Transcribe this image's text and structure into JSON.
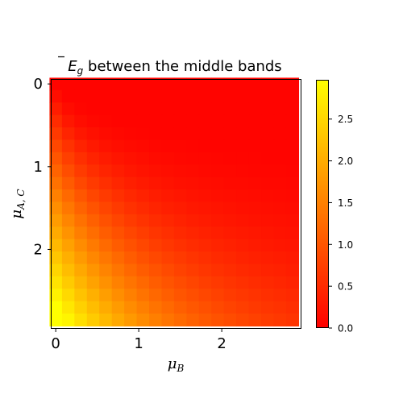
{
  "chart_data": {
    "type": "heatmap",
    "title": {
      "prefix": "E",
      "sub": "g",
      "rest": " between the middle bands"
    },
    "xlabel": {
      "base": "μ",
      "sub": "B"
    },
    "ylabel": {
      "base": "μ",
      "sub": "A, C"
    },
    "x_range": [
      -0.05,
      2.95
    ],
    "y_range": [
      -0.05,
      2.95
    ],
    "y_inverted": true,
    "grid_size": 20,
    "cell_step": 0.15,
    "x_ticks": [
      "0",
      "1",
      "2"
    ],
    "y_ticks": [
      "0",
      "1",
      "2"
    ],
    "colorbar": {
      "range": [
        0.0,
        2.97
      ],
      "colormap": "autumn",
      "color_min": "#ff0000",
      "color_max": "#ffff00",
      "ticks": [
        "0.0",
        "0.5",
        "1.0",
        "1.5",
        "2.0",
        "2.5"
      ]
    },
    "description": "Average gap between middle bands as function of mu_B (x) and mu_A,C (y); maximum ~3.0 near mu_B=0, mu_A,C=2; minimum ~0 near top row (mu_A,C=0)."
  }
}
